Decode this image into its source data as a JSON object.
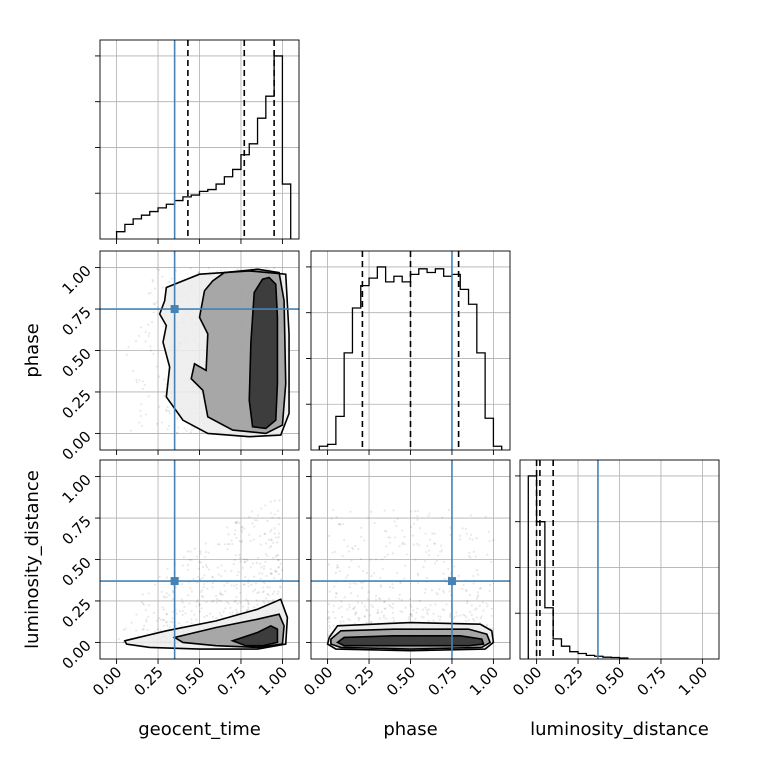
{
  "chart_data": {
    "type": "corner",
    "parameters": [
      "geocent_time",
      "phase",
      "luminosity_distance"
    ],
    "ticks": [
      "0.00",
      "0.25",
      "0.50",
      "0.75",
      "1.00"
    ],
    "range": [
      -0.1,
      1.1
    ],
    "truths": {
      "geocent_time": 0.35,
      "phase": 0.75,
      "luminosity_distance": 0.37
    },
    "truth_color": "#4682b4",
    "quantiles": {
      "geocent_time": [
        0.43,
        0.77,
        0.95
      ],
      "phase": [
        0.21,
        0.5,
        0.79
      ],
      "luminosity_distance": [
        0.0,
        0.02,
        0.1
      ]
    },
    "marginals": {
      "geocent_time": {
        "bin_edges": [
          0.0,
          0.05,
          0.1,
          0.15,
          0.2,
          0.25,
          0.3,
          0.35,
          0.4,
          0.45,
          0.5,
          0.55,
          0.6,
          0.65,
          0.7,
          0.75,
          0.8,
          0.85,
          0.9,
          0.95,
          1.0,
          1.05
        ],
        "density": [
          0.04,
          0.08,
          0.11,
          0.13,
          0.15,
          0.17,
          0.19,
          0.21,
          0.23,
          0.24,
          0.26,
          0.27,
          0.3,
          0.34,
          0.38,
          0.46,
          0.52,
          0.66,
          0.78,
          1.0,
          0.3
        ]
      },
      "phase": {
        "bin_edges": [
          -0.05,
          0.0,
          0.05,
          0.1,
          0.15,
          0.2,
          0.25,
          0.3,
          0.35,
          0.4,
          0.45,
          0.5,
          0.55,
          0.6,
          0.65,
          0.7,
          0.75,
          0.8,
          0.85,
          0.9,
          0.95,
          1.0,
          1.05
        ],
        "density": [
          0.02,
          0.03,
          0.18,
          0.52,
          0.76,
          0.88,
          0.92,
          0.98,
          0.9,
          0.93,
          0.9,
          0.94,
          0.97,
          0.95,
          0.97,
          0.93,
          0.94,
          0.86,
          0.78,
          0.52,
          0.17,
          0.02
        ]
      },
      "luminosity_distance": {
        "bin_edges": [
          -0.05,
          0.0,
          0.05,
          0.1,
          0.15,
          0.2,
          0.25,
          0.3,
          0.35,
          0.4,
          0.45,
          0.5,
          0.55
        ],
        "density": [
          1.0,
          0.75,
          0.28,
          0.11,
          0.07,
          0.04,
          0.03,
          0.02,
          0.015,
          0.01,
          0.008,
          0.005
        ]
      }
    },
    "contours": {
      "phase_vs_geocent_time": [
        [
          [
            0.92,
            0.94
          ],
          [
            0.96,
            0.9
          ],
          [
            0.97,
            0.7
          ],
          [
            0.97,
            0.3
          ],
          [
            0.96,
            0.08
          ],
          [
            0.9,
            0.03
          ],
          [
            0.82,
            0.04
          ],
          [
            0.8,
            0.2
          ],
          [
            0.81,
            0.55
          ],
          [
            0.83,
            0.85
          ],
          [
            0.88,
            0.93
          ]
        ],
        [
          [
            0.65,
            0.97
          ],
          [
            0.85,
            0.99
          ],
          [
            0.98,
            0.97
          ],
          [
            1.01,
            0.8
          ],
          [
            1.02,
            0.3
          ],
          [
            1.0,
            0.05
          ],
          [
            0.9,
            0.0
          ],
          [
            0.7,
            0.02
          ],
          [
            0.55,
            0.1
          ],
          [
            0.52,
            0.26
          ],
          [
            0.45,
            0.33
          ],
          [
            0.47,
            0.42
          ],
          [
            0.54,
            0.38
          ],
          [
            0.55,
            0.6
          ],
          [
            0.5,
            0.7
          ],
          [
            0.53,
            0.86
          ],
          [
            0.58,
            0.92
          ]
        ],
        [
          [
            0.3,
            0.88
          ],
          [
            0.5,
            0.96
          ],
          [
            0.8,
            0.98
          ],
          [
            1.02,
            0.96
          ],
          [
            1.04,
            0.6
          ],
          [
            1.04,
            0.12
          ],
          [
            0.99,
            -0.01
          ],
          [
            0.8,
            -0.02
          ],
          [
            0.55,
            0.0
          ],
          [
            0.4,
            0.08
          ],
          [
            0.3,
            0.22
          ],
          [
            0.32,
            0.4
          ],
          [
            0.28,
            0.55
          ],
          [
            0.3,
            0.65
          ],
          [
            0.26,
            0.72
          ],
          [
            0.29,
            0.8
          ]
        ]
      ],
      "luminosity_distance_vs_geocent_time": [
        [
          [
            0.7,
            0.01
          ],
          [
            0.85,
            0.06
          ],
          [
            0.93,
            0.1
          ],
          [
            0.97,
            0.08
          ],
          [
            0.97,
            0.0
          ],
          [
            0.88,
            -0.02
          ],
          [
            0.78,
            -0.02
          ]
        ],
        [
          [
            0.35,
            0.03
          ],
          [
            0.6,
            0.09
          ],
          [
            0.85,
            0.14
          ],
          [
            0.98,
            0.17
          ],
          [
            1.01,
            0.1
          ],
          [
            1.0,
            -0.01
          ],
          [
            0.85,
            -0.03
          ],
          [
            0.6,
            -0.02
          ],
          [
            0.4,
            0.0
          ]
        ],
        [
          [
            0.05,
            0.01
          ],
          [
            0.3,
            0.07
          ],
          [
            0.6,
            0.13
          ],
          [
            0.85,
            0.2
          ],
          [
            0.99,
            0.26
          ],
          [
            1.03,
            0.15
          ],
          [
            1.02,
            -0.01
          ],
          [
            0.85,
            -0.04
          ],
          [
            0.5,
            -0.04
          ],
          [
            0.2,
            -0.03
          ],
          [
            0.06,
            -0.01
          ]
        ]
      ],
      "luminosity_distance_vs_phase": [
        [
          [
            0.06,
            0.0
          ],
          [
            0.1,
            0.03
          ],
          [
            0.4,
            0.04
          ],
          [
            0.8,
            0.04
          ],
          [
            0.93,
            0.02
          ],
          [
            0.94,
            -0.01
          ],
          [
            0.85,
            -0.02
          ],
          [
            0.4,
            -0.02
          ],
          [
            0.1,
            -0.02
          ]
        ],
        [
          [
            0.02,
            0.02
          ],
          [
            0.08,
            0.07
          ],
          [
            0.4,
            0.08
          ],
          [
            0.85,
            0.08
          ],
          [
            0.96,
            0.05
          ],
          [
            0.98,
            0.0
          ],
          [
            0.93,
            -0.03
          ],
          [
            0.5,
            -0.04
          ],
          [
            0.08,
            -0.03
          ],
          [
            0.02,
            -0.01
          ]
        ],
        [
          [
            0.01,
            0.03
          ],
          [
            0.06,
            0.1
          ],
          [
            0.5,
            0.12
          ],
          [
            0.92,
            0.11
          ],
          [
            0.99,
            0.07
          ],
          [
            1.0,
            0.0
          ],
          [
            0.95,
            -0.04
          ],
          [
            0.5,
            -0.05
          ],
          [
            0.05,
            -0.04
          ],
          [
            0.0,
            -0.01
          ]
        ]
      ]
    }
  }
}
